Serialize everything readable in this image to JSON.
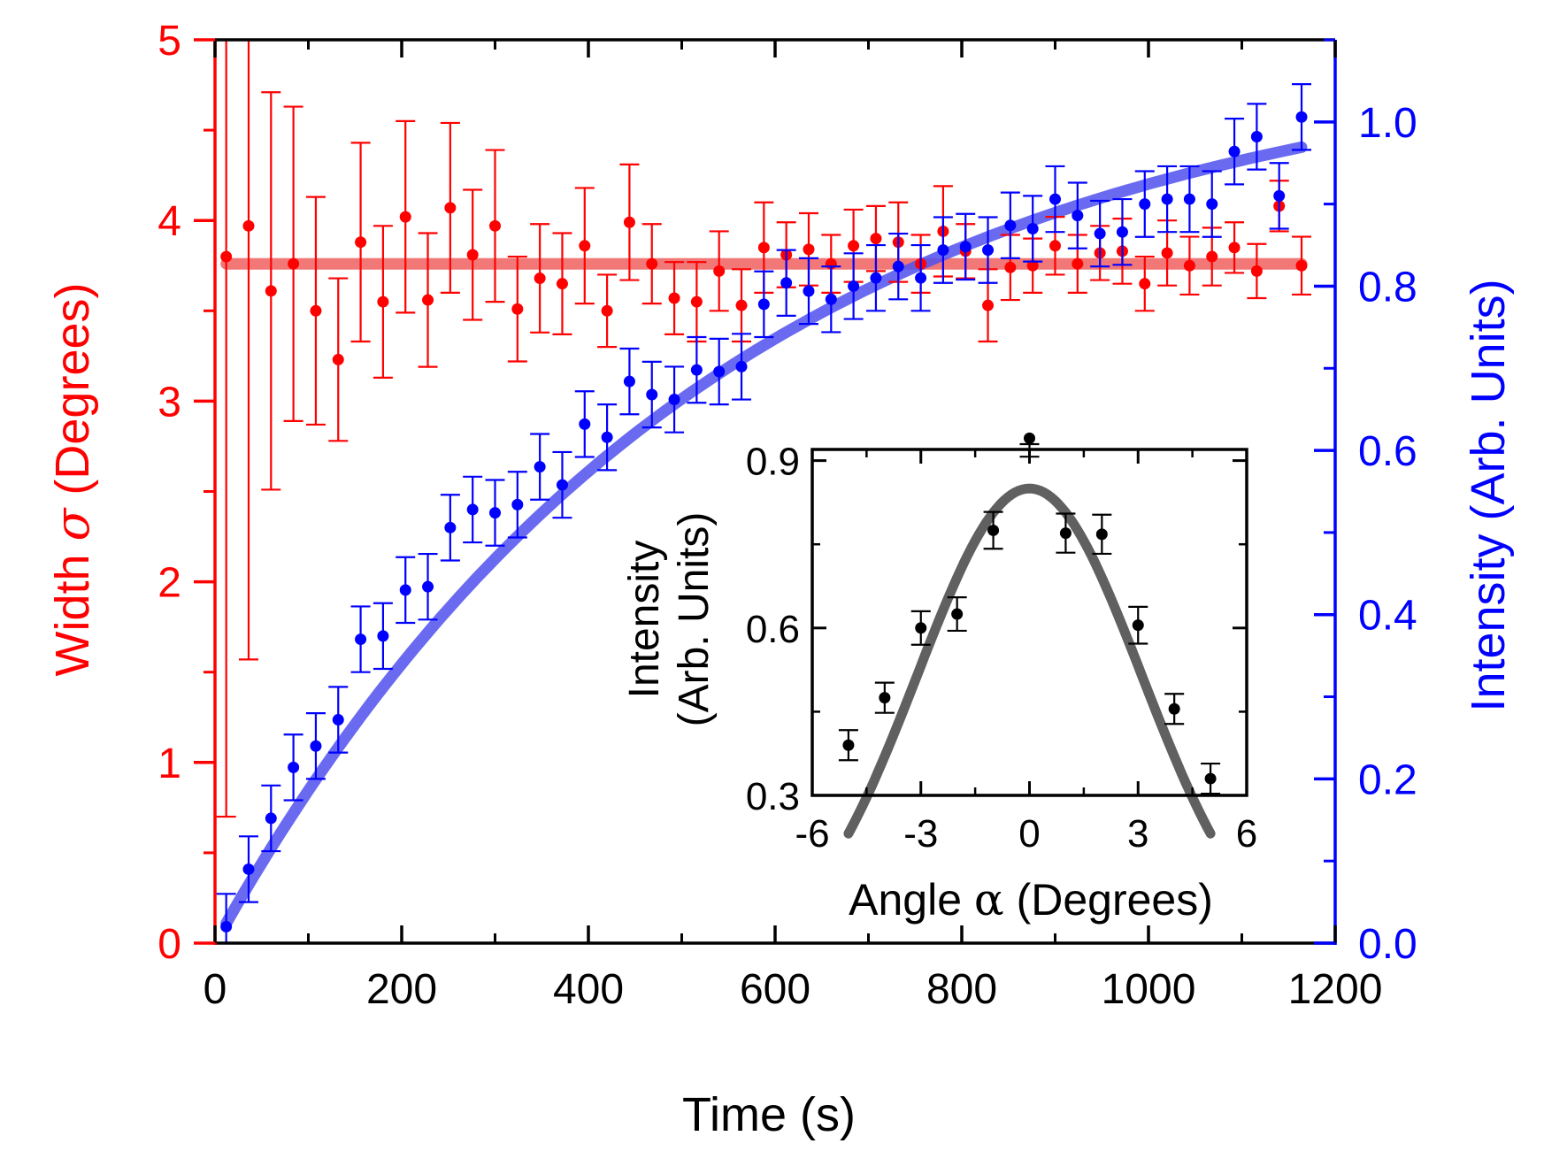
{
  "colors": {
    "left_axis": "#ff0000",
    "right_axis": "#0000ff",
    "main_axis": "#000000",
    "width_fit": "#f06060",
    "intensity_fit": "#5050ee",
    "inset_points": "#000000",
    "inset_fit": "#606060"
  },
  "chart_data": [
    {
      "type": "scatter",
      "xlabel": "Time (s)",
      "ylabel_left_parts": [
        "Width ",
        "σ",
        " (Degrees)"
      ],
      "ylabel_right": "Intensity (Arb. Units)",
      "xlim": [
        0,
        1200
      ],
      "ylim_left": [
        0,
        5
      ],
      "ylim_right": [
        0,
        1.1
      ],
      "x_ticks": [
        0,
        200,
        400,
        600,
        800,
        1000,
        1200
      ],
      "x_tick_labels": [
        "0",
        "200",
        "400",
        "600",
        "800",
        "1000",
        "1200"
      ],
      "y_left_ticks": [
        0,
        1,
        2,
        3,
        4,
        5
      ],
      "y_left_tick_labels": [
        "0",
        "1",
        "2",
        "3",
        "4",
        "5"
      ],
      "y_right_ticks": [
        0,
        0.2,
        0.4,
        0.6,
        0.8,
        1.0
      ],
      "y_right_tick_labels": [
        "0.0",
        "0.2",
        "0.4",
        "0.6",
        "0.8",
        "1.0"
      ],
      "grid": false,
      "series": [
        {
          "axis": "left",
          "color": "#ff0000",
          "x": [
            12,
            36,
            60,
            84,
            108,
            132,
            156,
            180,
            204,
            228,
            252,
            276,
            300,
            324,
            348,
            372,
            396,
            420,
            444,
            468,
            492,
            516,
            540,
            564,
            588,
            612,
            636,
            660,
            684,
            708,
            732,
            756,
            780,
            804,
            828,
            852,
            876,
            900,
            924,
            948,
            972,
            996,
            1020,
            1044,
            1068,
            1092,
            1116,
            1140,
            1164
          ],
          "y": [
            3.8,
            3.97,
            3.61,
            3.76,
            3.5,
            3.23,
            3.88,
            3.55,
            4.02,
            3.56,
            4.07,
            3.81,
            3.97,
            3.51,
            3.68,
            3.65,
            3.86,
            3.5,
            3.99,
            3.76,
            3.57,
            3.55,
            3.72,
            3.53,
            3.85,
            3.81,
            3.84,
            3.76,
            3.86,
            3.9,
            3.88,
            3.76,
            3.94,
            3.83,
            3.53,
            3.74,
            3.75,
            3.86,
            3.76,
            3.82,
            3.83,
            3.65,
            3.82,
            3.75,
            3.8,
            3.85,
            3.72,
            4.08,
            3.75
          ],
          "err": [
            3.1,
            2.4,
            1.1,
            0.87,
            0.63,
            0.45,
            0.55,
            0.42,
            0.53,
            0.37,
            0.47,
            0.36,
            0.42,
            0.29,
            0.3,
            0.28,
            0.32,
            0.2,
            0.32,
            0.22,
            0.2,
            0.22,
            0.22,
            0.2,
            0.25,
            0.18,
            0.2,
            0.16,
            0.2,
            0.18,
            0.22,
            0.16,
            0.25,
            0.15,
            0.2,
            0.18,
            0.15,
            0.16,
            0.16,
            0.15,
            0.18,
            0.15,
            0.18,
            0.16,
            0.16,
            0.14,
            0.15,
            0.14,
            0.16
          ]
        },
        {
          "axis": "right",
          "color": "#0000ff",
          "x": [
            12,
            36,
            60,
            84,
            108,
            132,
            156,
            180,
            204,
            228,
            252,
            276,
            300,
            324,
            348,
            372,
            396,
            420,
            444,
            468,
            492,
            516,
            540,
            564,
            588,
            612,
            636,
            660,
            684,
            708,
            732,
            756,
            780,
            804,
            828,
            852,
            876,
            900,
            924,
            948,
            972,
            996,
            1020,
            1044,
            1068,
            1092,
            1116,
            1140,
            1164
          ],
          "y": [
            0.02,
            0.09,
            0.152,
            0.214,
            0.24,
            0.272,
            0.37,
            0.374,
            0.43,
            0.434,
            0.506,
            0.528,
            0.524,
            0.534,
            0.58,
            0.558,
            0.632,
            0.616,
            0.684,
            0.668,
            0.662,
            0.698,
            0.696,
            0.702,
            0.778,
            0.804,
            0.794,
            0.784,
            0.8,
            0.81,
            0.824,
            0.81,
            0.844,
            0.848,
            0.844,
            0.874,
            0.87,
            0.906,
            0.886,
            0.864,
            0.866,
            0.9,
            0.906,
            0.906,
            0.9,
            0.964,
            0.982,
            0.91,
            1.006
          ],
          "err": [
            0.04,
            0.04,
            0.04,
            0.04,
            0.04,
            0.04,
            0.04,
            0.04,
            0.04,
            0.04,
            0.04,
            0.04,
            0.04,
            0.04,
            0.04,
            0.04,
            0.04,
            0.04,
            0.04,
            0.04,
            0.04,
            0.04,
            0.04,
            0.04,
            0.04,
            0.04,
            0.04,
            0.04,
            0.04,
            0.04,
            0.04,
            0.04,
            0.04,
            0.04,
            0.04,
            0.04,
            0.04,
            0.04,
            0.04,
            0.04,
            0.04,
            0.04,
            0.04,
            0.04,
            0.04,
            0.04,
            0.04,
            0.04,
            0.04
          ]
        }
      ],
      "fits": [
        {
          "axis": "left",
          "kind": "constant",
          "value": 3.76,
          "x_range": [
            12,
            1164
          ]
        },
        {
          "axis": "right",
          "kind": "exponential_rise",
          "amplitude": 1.095,
          "time_constant": 538,
          "t0": 0,
          "x_range": [
            12,
            1164
          ]
        }
      ]
    },
    {
      "type": "scatter",
      "placement": "inset-lower-right",
      "xlabel_parts": [
        "Angle ",
        "α",
        " (Degrees)"
      ],
      "ylabel_lines": [
        "Intensity",
        "(Arb. Units)"
      ],
      "xlim": [
        -6,
        6
      ],
      "ylim": [
        0.3,
        0.92
      ],
      "x_ticks": [
        -6,
        -3,
        0,
        3,
        6
      ],
      "x_tick_labels": [
        "-6",
        "-3",
        "0",
        "3",
        "6"
      ],
      "y_ticks": [
        0.3,
        0.6,
        0.9
      ],
      "y_tick_labels": [
        "0.3",
        "0.6",
        "0.9"
      ],
      "grid": false,
      "series": [
        {
          "color": "#000000",
          "x": [
            -5,
            -4,
            -3,
            -2,
            -1,
            0,
            1,
            2,
            3,
            4,
            5
          ],
          "y": [
            0.39,
            0.475,
            0.6,
            0.625,
            0.775,
            0.94,
            0.77,
            0.768,
            0.605,
            0.455,
            0.33
          ],
          "err": [
            0.027,
            0.027,
            0.03,
            0.03,
            0.033,
            0.033,
            0.035,
            0.035,
            0.033,
            0.027,
            0.027
          ]
        }
      ],
      "fits": [
        {
          "kind": "gaussian",
          "amplitude": 0.85,
          "center": 0,
          "sigma": 3.1,
          "x_range": [
            -5,
            5
          ]
        }
      ]
    }
  ]
}
